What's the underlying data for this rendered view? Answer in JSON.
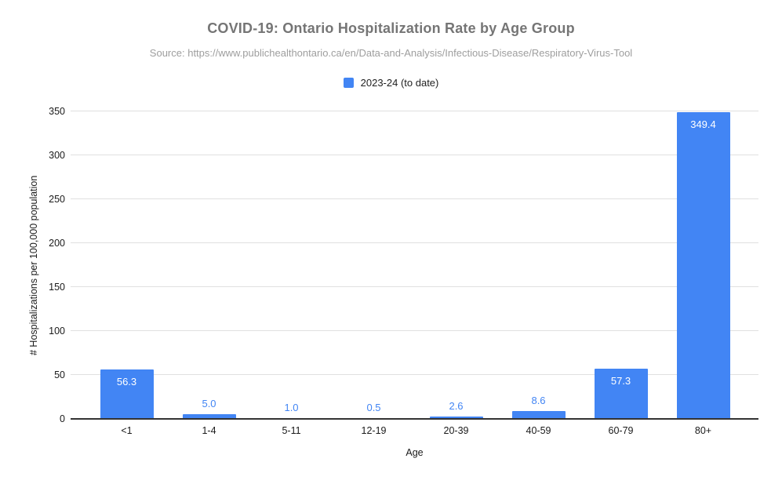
{
  "title": "COVID-19: Ontario Hospitalization Rate by Age Group",
  "subtitle": "Source: https://www.publichealthontario.ca/en/Data-and-Analysis/Infectious-Disease/Respiratory-Virus-Tool",
  "legend": {
    "series_label": "2023-24 (to date)",
    "swatch_color": "#4285f4"
  },
  "chart_data": {
    "type": "bar",
    "title": "COVID-19: Ontario Hospitalization Rate by Age Group",
    "subtitle": "Source: https://www.publichealthontario.ca/en/Data-and-Analysis/Infectious-Disease/Respiratory-Virus-Tool",
    "categories": [
      "<1",
      "1-4",
      "5-11",
      "12-19",
      "20-39",
      "40-59",
      "60-79",
      "80+"
    ],
    "series": [
      {
        "name": "2023-24 (to date)",
        "values": [
          56.3,
          5.0,
          1.0,
          0.5,
          2.6,
          8.6,
          57.3,
          349.4
        ]
      }
    ],
    "data_labels": [
      "56.3",
      "5.0",
      "1.0",
      "0.5",
      "2.6",
      "8.6",
      "57.3",
      "349.4"
    ],
    "xlabel": "Age",
    "ylabel": "# Hospitalizations per 100,000 population",
    "ylim": [
      0,
      350
    ],
    "yticks": [
      0,
      50,
      100,
      150,
      200,
      250,
      300,
      350
    ],
    "grid": true,
    "legend_position": "top"
  },
  "colors": {
    "bar": "#4285f4",
    "label_inside": "#ffffff",
    "label_outside": "#4285f4",
    "title": "#757575",
    "subtitle": "#9e9e9e",
    "axis_text": "#1a1a1a",
    "axis_line": "#333333",
    "gridline": "#e0e0e0",
    "background": "#ffffff"
  }
}
